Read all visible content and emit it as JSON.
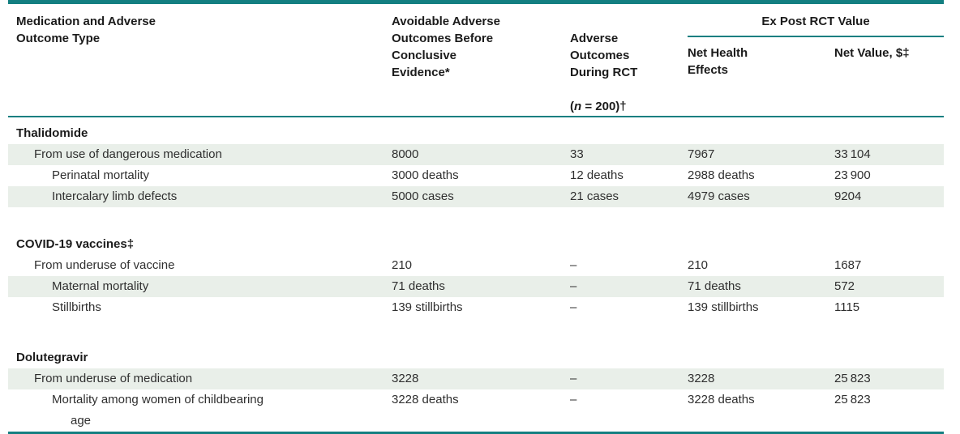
{
  "colors": {
    "accent_teal": "#137f81",
    "row_shade": "#e9efe9"
  },
  "table": {
    "header": {
      "col1": "Medication and Adverse\nOutcome Type",
      "col2": "Avoidable Adverse\nOutcomes Before\nConclusive\nEvidence*",
      "col3_lines": "Adverse\nOutcomes\nDuring RCT",
      "col3_paren": "(",
      "col3_n": "n",
      "col3_rest": " = 200)†",
      "group_label": "Ex Post RCT Value",
      "col4": "Net Health\nEffects",
      "col5": "Net Value, $‡"
    },
    "sections": [
      {
        "title": "Thalidomide",
        "rows": [
          {
            "label": "From use of dangerous medication",
            "indent": 1,
            "shaded": true,
            "values": [
              "8000",
              "33",
              "7967",
              "33 104"
            ]
          },
          {
            "label": "Perinatal mortality",
            "indent": 2,
            "shaded": false,
            "values": [
              "3000 deaths",
              "12 deaths",
              "2988 deaths",
              "23 900"
            ]
          },
          {
            "label": "Intercalary limb defects",
            "indent": 2,
            "shaded": true,
            "values": [
              "5000 cases",
              "21 cases",
              "4979 cases",
              "9204"
            ]
          }
        ]
      },
      {
        "title": "COVID-19 vaccines‡",
        "rows": [
          {
            "label": "From underuse of vaccine",
            "indent": 1,
            "shaded": false,
            "values": [
              "210",
              "–",
              "210",
              "1687"
            ]
          },
          {
            "label": "Maternal mortality",
            "indent": 2,
            "shaded": true,
            "values": [
              "71 deaths",
              "–",
              "71 deaths",
              "572"
            ]
          },
          {
            "label": "Stillbirths",
            "indent": 2,
            "shaded": false,
            "values": [
              "139 stillbirths",
              "–",
              "139 stillbirths",
              "1115"
            ]
          }
        ]
      },
      {
        "title": "Dolutegravir",
        "rows": [
          {
            "label": "From underuse of medication",
            "indent": 1,
            "shaded": true,
            "values": [
              "3228",
              "–",
              "3228",
              "25 823"
            ]
          },
          {
            "label": "Mortality among women of childbearing\nage",
            "indent": 2,
            "shaded": false,
            "values": [
              "3228 deaths",
              "–",
              "3228 deaths",
              "25 823"
            ]
          }
        ]
      }
    ]
  }
}
